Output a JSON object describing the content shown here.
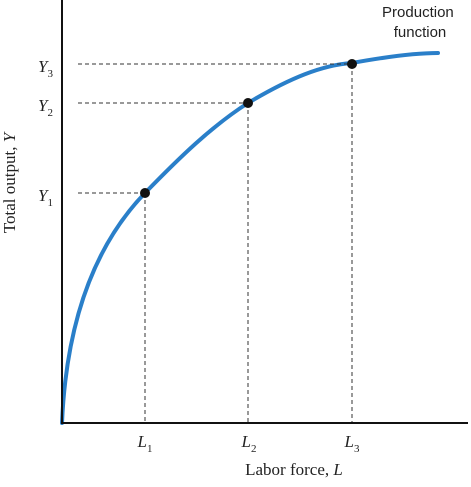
{
  "diagram": {
    "curve_label_line1": "Production",
    "curve_label_line2": "function",
    "x_axis": {
      "label_text": "Labor force, ",
      "label_var": "L",
      "ticks": [
        {
          "base": "L",
          "sub": "1"
        },
        {
          "base": "L",
          "sub": "2"
        },
        {
          "base": "L",
          "sub": "3"
        }
      ]
    },
    "y_axis": {
      "label_text": "Total output, ",
      "label_var": "Y",
      "ticks": [
        {
          "base": "Y",
          "sub": "1"
        },
        {
          "base": "Y",
          "sub": "2"
        },
        {
          "base": "Y",
          "sub": "3"
        }
      ]
    },
    "colors": {
      "curve": "#2a7fc9",
      "axes": "#111111",
      "guides": "#333333",
      "points": "#111111"
    }
  }
}
